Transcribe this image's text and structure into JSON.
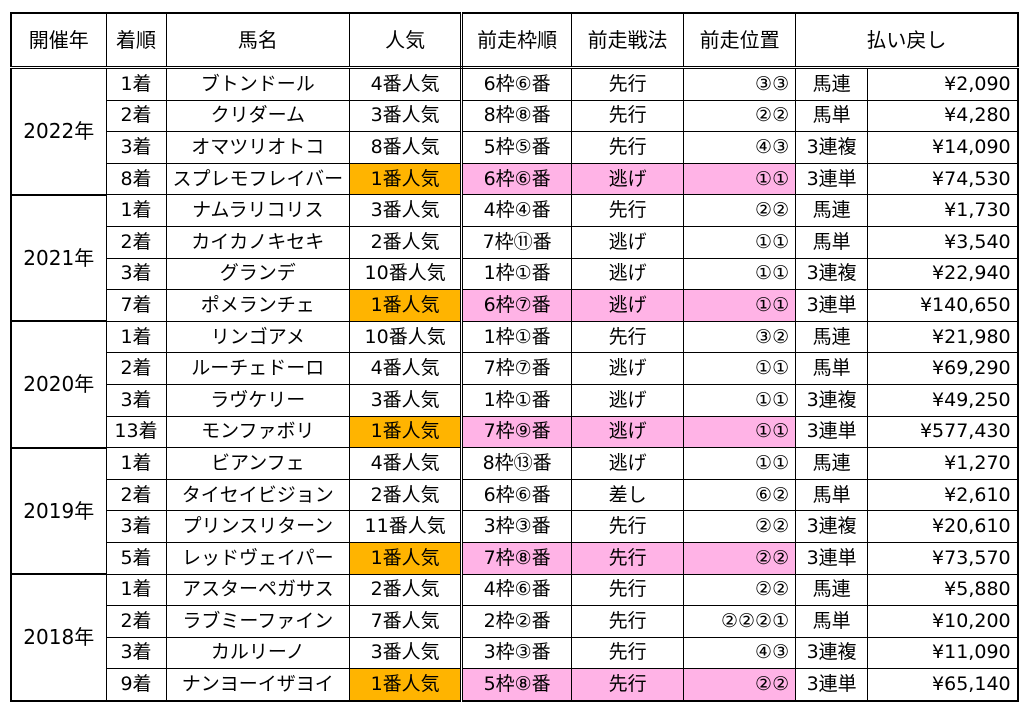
{
  "headers": [
    "開催年",
    "着順",
    "馬名",
    "人気",
    "前走枠順",
    "前走戦法",
    "前走位置",
    "払い戻し"
  ],
  "colors": {
    "favorite_popularity": "#ffb400",
    "favorite_prev_race": "#ffb3e6"
  },
  "years": [
    {
      "year": "2022年",
      "rows": [
        {
          "rank": "1着",
          "horse": "ブトンドール",
          "pop": "4番人気",
          "gate": "6枠⑥番",
          "tactic": "先行",
          "pos": "③③",
          "bet": "馬連",
          "payout": "¥2,090",
          "hl": false
        },
        {
          "rank": "2着",
          "horse": "クリダーム",
          "pop": "3番人気",
          "gate": "8枠⑧番",
          "tactic": "先行",
          "pos": "②②",
          "bet": "馬単",
          "payout": "¥4,280",
          "hl": false
        },
        {
          "rank": "3着",
          "horse": "オマツリオトコ",
          "pop": "8番人気",
          "gate": "5枠⑤番",
          "tactic": "先行",
          "pos": "④③",
          "bet": "3連複",
          "payout": "¥14,090",
          "hl": false
        },
        {
          "rank": "8着",
          "horse": "スプレモフレイバー",
          "pop": "1番人気",
          "gate": "6枠⑥番",
          "tactic": "逃げ",
          "pos": "①①",
          "bet": "3連単",
          "payout": "¥74,530",
          "hl": true
        }
      ]
    },
    {
      "year": "2021年",
      "rows": [
        {
          "rank": "1着",
          "horse": "ナムラリコリス",
          "pop": "3番人気",
          "gate": "4枠④番",
          "tactic": "先行",
          "pos": "②②",
          "bet": "馬連",
          "payout": "¥1,730",
          "hl": false
        },
        {
          "rank": "2着",
          "horse": "カイカノキセキ",
          "pop": "2番人気",
          "gate": "7枠⑪番",
          "tactic": "逃げ",
          "pos": "①①",
          "bet": "馬単",
          "payout": "¥3,540",
          "hl": false
        },
        {
          "rank": "3着",
          "horse": "グランデ",
          "pop": "10番人気",
          "gate": "1枠①番",
          "tactic": "逃げ",
          "pos": "①①",
          "bet": "3連複",
          "payout": "¥22,940",
          "hl": false
        },
        {
          "rank": "7着",
          "horse": "ポメランチェ",
          "pop": "1番人気",
          "gate": "6枠⑦番",
          "tactic": "逃げ",
          "pos": "①①",
          "bet": "3連単",
          "payout": "¥140,650",
          "hl": true
        }
      ]
    },
    {
      "year": "2020年",
      "rows": [
        {
          "rank": "1着",
          "horse": "リンゴアメ",
          "pop": "10番人気",
          "gate": "1枠①番",
          "tactic": "先行",
          "pos": "③②",
          "bet": "馬連",
          "payout": "¥21,980",
          "hl": false
        },
        {
          "rank": "2着",
          "horse": "ルーチェドーロ",
          "pop": "4番人気",
          "gate": "7枠⑦番",
          "tactic": "逃げ",
          "pos": "①①",
          "bet": "馬単",
          "payout": "¥69,290",
          "hl": false
        },
        {
          "rank": "3着",
          "horse": "ラヴケリー",
          "pop": "3番人気",
          "gate": "1枠①番",
          "tactic": "逃げ",
          "pos": "①①",
          "bet": "3連複",
          "payout": "¥49,250",
          "hl": false
        },
        {
          "rank": "13着",
          "horse": "モンファボリ",
          "pop": "1番人気",
          "gate": "7枠⑨番",
          "tactic": "逃げ",
          "pos": "①①",
          "bet": "3連単",
          "payout": "¥577,430",
          "hl": true
        }
      ]
    },
    {
      "year": "2019年",
      "rows": [
        {
          "rank": "1着",
          "horse": "ビアンフェ",
          "pop": "4番人気",
          "gate": "8枠⑬番",
          "tactic": "逃げ",
          "pos": "①①",
          "bet": "馬連",
          "payout": "¥1,270",
          "hl": false
        },
        {
          "rank": "2着",
          "horse": "タイセイビジョン",
          "pop": "2番人気",
          "gate": "6枠⑥番",
          "tactic": "差し",
          "pos": "⑥②",
          "bet": "馬単",
          "payout": "¥2,610",
          "hl": false
        },
        {
          "rank": "3着",
          "horse": "プリンスリターン",
          "pop": "11番人気",
          "gate": "3枠③番",
          "tactic": "先行",
          "pos": "②②",
          "bet": "3連複",
          "payout": "¥20,610",
          "hl": false
        },
        {
          "rank": "5着",
          "horse": "レッドヴェイパー",
          "pop": "1番人気",
          "gate": "7枠⑧番",
          "tactic": "先行",
          "pos": "②②",
          "bet": "3連単",
          "payout": "¥73,570",
          "hl": true
        }
      ]
    },
    {
      "year": "2018年",
      "rows": [
        {
          "rank": "1着",
          "horse": "アスターペガサス",
          "pop": "2番人気",
          "gate": "4枠⑥番",
          "tactic": "先行",
          "pos": "②②",
          "bet": "馬連",
          "payout": "¥5,880",
          "hl": false
        },
        {
          "rank": "2着",
          "horse": "ラブミーファイン",
          "pop": "7番人気",
          "gate": "2枠②番",
          "tactic": "先行",
          "pos": "②②②①",
          "bet": "馬単",
          "payout": "¥10,200",
          "hl": false
        },
        {
          "rank": "3着",
          "horse": "カルリーノ",
          "pop": "3番人気",
          "gate": "3枠③番",
          "tactic": "先行",
          "pos": "④③",
          "bet": "3連複",
          "payout": "¥11,090",
          "hl": false
        },
        {
          "rank": "9着",
          "horse": "ナンヨーイザヨイ",
          "pop": "1番人気",
          "gate": "5枠⑧番",
          "tactic": "先行",
          "pos": "②②",
          "bet": "3連単",
          "payout": "¥65,140",
          "hl": true
        }
      ]
    }
  ]
}
